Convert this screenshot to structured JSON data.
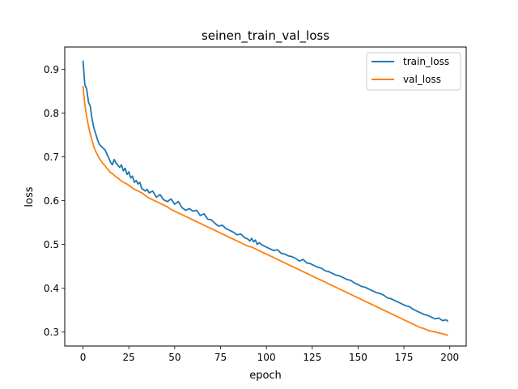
{
  "chart_data": {
    "type": "line",
    "title": "seinen_train_val_loss",
    "xlabel": "epoch",
    "ylabel": "loss",
    "xlim": [
      -9.95,
      208.95
    ],
    "ylim": [
      0.268,
      0.951
    ],
    "xticks": [
      0,
      25,
      50,
      75,
      100,
      125,
      150,
      175,
      200
    ],
    "yticks": [
      0.3,
      0.4,
      0.5,
      0.6,
      0.7,
      0.8,
      0.9
    ],
    "ytick_labels": [
      "0.3",
      "0.4",
      "0.5",
      "0.6",
      "0.7",
      "0.8",
      "0.9"
    ],
    "grid": false,
    "legend": "top-right",
    "series": [
      {
        "name": "train_loss",
        "color": "#1f77b4",
        "points": [
          [
            0,
            0.92
          ],
          [
            1,
            0.865
          ],
          [
            2,
            0.855
          ],
          [
            3,
            0.825
          ],
          [
            4,
            0.815
          ],
          [
            5,
            0.785
          ],
          [
            6,
            0.765
          ],
          [
            7,
            0.752
          ],
          [
            8,
            0.738
          ],
          [
            9,
            0.728
          ],
          [
            10,
            0.724
          ],
          [
            12,
            0.716
          ],
          [
            14,
            0.698
          ],
          [
            15,
            0.688
          ],
          [
            16,
            0.682
          ],
          [
            17,
            0.694
          ],
          [
            18,
            0.686
          ],
          [
            20,
            0.676
          ],
          [
            21,
            0.682
          ],
          [
            22,
            0.668
          ],
          [
            23,
            0.674
          ],
          [
            24,
            0.66
          ],
          [
            25,
            0.666
          ],
          [
            26,
            0.652
          ],
          [
            27,
            0.656
          ],
          [
            28,
            0.642
          ],
          [
            29,
            0.646
          ],
          [
            30,
            0.638
          ],
          [
            31,
            0.642
          ],
          [
            32,
            0.628
          ],
          [
            34,
            0.622
          ],
          [
            35,
            0.626
          ],
          [
            36,
            0.618
          ],
          [
            38,
            0.622
          ],
          [
            40,
            0.608
          ],
          [
            42,
            0.614
          ],
          [
            44,
            0.602
          ],
          [
            46,
            0.598
          ],
          [
            48,
            0.604
          ],
          [
            50,
            0.592
          ],
          [
            52,
            0.598
          ],
          [
            54,
            0.584
          ],
          [
            56,
            0.578
          ],
          [
            58,
            0.582
          ],
          [
            60,
            0.576
          ],
          [
            62,
            0.578
          ],
          [
            64,
            0.566
          ],
          [
            66,
            0.57
          ],
          [
            68,
            0.558
          ],
          [
            70,
            0.556
          ],
          [
            72,
            0.548
          ],
          [
            74,
            0.542
          ],
          [
            76,
            0.544
          ],
          [
            78,
            0.536
          ],
          [
            80,
            0.532
          ],
          [
            82,
            0.528
          ],
          [
            84,
            0.522
          ],
          [
            86,
            0.524
          ],
          [
            88,
            0.516
          ],
          [
            90,
            0.512
          ],
          [
            91,
            0.508
          ],
          [
            92,
            0.514
          ],
          [
            93,
            0.506
          ],
          [
            94,
            0.51
          ],
          [
            95,
            0.5
          ],
          [
            96,
            0.504
          ],
          [
            98,
            0.498
          ],
          [
            100,
            0.494
          ],
          [
            102,
            0.49
          ],
          [
            104,
            0.486
          ],
          [
            106,
            0.488
          ],
          [
            108,
            0.48
          ],
          [
            110,
            0.478
          ],
          [
            112,
            0.474
          ],
          [
            114,
            0.472
          ],
          [
            116,
            0.468
          ],
          [
            118,
            0.462
          ],
          [
            120,
            0.466
          ],
          [
            122,
            0.458
          ],
          [
            124,
            0.456
          ],
          [
            126,
            0.452
          ],
          [
            128,
            0.448
          ],
          [
            130,
            0.446
          ],
          [
            132,
            0.44
          ],
          [
            134,
            0.438
          ],
          [
            136,
            0.434
          ],
          [
            138,
            0.43
          ],
          [
            140,
            0.428
          ],
          [
            142,
            0.424
          ],
          [
            144,
            0.42
          ],
          [
            146,
            0.418
          ],
          [
            148,
            0.412
          ],
          [
            150,
            0.408
          ],
          [
            152,
            0.404
          ],
          [
            154,
            0.402
          ],
          [
            156,
            0.398
          ],
          [
            158,
            0.394
          ],
          [
            160,
            0.39
          ],
          [
            162,
            0.388
          ],
          [
            164,
            0.384
          ],
          [
            166,
            0.378
          ],
          [
            168,
            0.376
          ],
          [
            170,
            0.372
          ],
          [
            172,
            0.368
          ],
          [
            174,
            0.364
          ],
          [
            176,
            0.36
          ],
          [
            178,
            0.358
          ],
          [
            180,
            0.352
          ],
          [
            182,
            0.348
          ],
          [
            184,
            0.344
          ],
          [
            186,
            0.34
          ],
          [
            188,
            0.338
          ],
          [
            190,
            0.334
          ],
          [
            192,
            0.33
          ],
          [
            194,
            0.332
          ],
          [
            196,
            0.326
          ],
          [
            198,
            0.328
          ],
          [
            199,
            0.324
          ]
        ]
      },
      {
        "name": "val_loss",
        "color": "#ff7f0e",
        "points": [
          [
            0,
            0.862
          ],
          [
            1,
            0.82
          ],
          [
            2,
            0.792
          ],
          [
            3,
            0.77
          ],
          [
            4,
            0.752
          ],
          [
            5,
            0.736
          ],
          [
            6,
            0.722
          ],
          [
            7,
            0.712
          ],
          [
            8,
            0.704
          ],
          [
            9,
            0.696
          ],
          [
            10,
            0.69
          ],
          [
            11,
            0.684
          ],
          [
            12,
            0.68
          ],
          [
            13,
            0.674
          ],
          [
            14,
            0.67
          ],
          [
            15,
            0.664
          ],
          [
            16,
            0.662
          ],
          [
            17,
            0.658
          ],
          [
            18,
            0.654
          ],
          [
            19,
            0.652
          ],
          [
            20,
            0.648
          ],
          [
            22,
            0.642
          ],
          [
            24,
            0.638
          ],
          [
            26,
            0.632
          ],
          [
            28,
            0.626
          ],
          [
            30,
            0.622
          ],
          [
            32,
            0.618
          ],
          [
            34,
            0.612
          ],
          [
            36,
            0.606
          ],
          [
            38,
            0.602
          ],
          [
            40,
            0.598
          ],
          [
            42,
            0.594
          ],
          [
            44,
            0.59
          ],
          [
            46,
            0.586
          ],
          [
            48,
            0.58
          ],
          [
            50,
            0.576
          ],
          [
            52,
            0.572
          ],
          [
            54,
            0.568
          ],
          [
            56,
            0.564
          ],
          [
            58,
            0.56
          ],
          [
            60,
            0.556
          ],
          [
            62,
            0.552
          ],
          [
            64,
            0.548
          ],
          [
            66,
            0.544
          ],
          [
            68,
            0.54
          ],
          [
            70,
            0.536
          ],
          [
            72,
            0.532
          ],
          [
            74,
            0.528
          ],
          [
            76,
            0.524
          ],
          [
            78,
            0.52
          ],
          [
            80,
            0.516
          ],
          [
            82,
            0.512
          ],
          [
            84,
            0.508
          ],
          [
            86,
            0.504
          ],
          [
            88,
            0.5
          ],
          [
            90,
            0.496
          ],
          [
            92,
            0.494
          ],
          [
            94,
            0.49
          ],
          [
            96,
            0.486
          ],
          [
            98,
            0.482
          ],
          [
            100,
            0.478
          ],
          [
            102,
            0.474
          ],
          [
            104,
            0.47
          ],
          [
            106,
            0.466
          ],
          [
            108,
            0.462
          ],
          [
            110,
            0.458
          ],
          [
            112,
            0.454
          ],
          [
            114,
            0.45
          ],
          [
            116,
            0.446
          ],
          [
            118,
            0.442
          ],
          [
            120,
            0.438
          ],
          [
            122,
            0.434
          ],
          [
            124,
            0.43
          ],
          [
            126,
            0.426
          ],
          [
            128,
            0.422
          ],
          [
            130,
            0.418
          ],
          [
            132,
            0.414
          ],
          [
            134,
            0.41
          ],
          [
            136,
            0.406
          ],
          [
            138,
            0.402
          ],
          [
            140,
            0.398
          ],
          [
            142,
            0.394
          ],
          [
            144,
            0.39
          ],
          [
            146,
            0.386
          ],
          [
            148,
            0.382
          ],
          [
            150,
            0.378
          ],
          [
            152,
            0.374
          ],
          [
            154,
            0.37
          ],
          [
            156,
            0.366
          ],
          [
            158,
            0.362
          ],
          [
            160,
            0.358
          ],
          [
            162,
            0.354
          ],
          [
            164,
            0.35
          ],
          [
            166,
            0.346
          ],
          [
            168,
            0.342
          ],
          [
            170,
            0.338
          ],
          [
            172,
            0.334
          ],
          [
            174,
            0.33
          ],
          [
            176,
            0.326
          ],
          [
            178,
            0.322
          ],
          [
            180,
            0.318
          ],
          [
            182,
            0.314
          ],
          [
            184,
            0.31
          ],
          [
            186,
            0.308
          ],
          [
            188,
            0.304
          ],
          [
            190,
            0.302
          ],
          [
            192,
            0.3
          ],
          [
            194,
            0.298
          ],
          [
            196,
            0.296
          ],
          [
            198,
            0.294
          ],
          [
            199,
            0.292
          ]
        ]
      }
    ]
  }
}
